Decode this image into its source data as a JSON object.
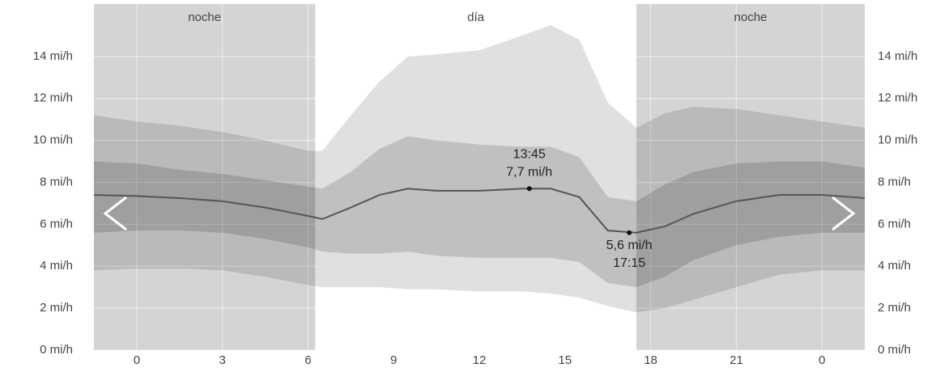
{
  "chart_data": {
    "type": "band-line",
    "periods": [
      {
        "label": "noche",
        "start": -1.5,
        "end": 6.25,
        "night": true
      },
      {
        "label": "día",
        "start": 6.25,
        "end": 17.5,
        "night": false
      },
      {
        "label": "noche",
        "start": 17.5,
        "end": 25.5,
        "night": true
      }
    ],
    "night_color": "rgba(0,0,0,0.17)",
    "x": [
      -1.5,
      0,
      1.5,
      3,
      4.5,
      6,
      6.5,
      7.5,
      8.5,
      9.5,
      10.5,
      12,
      13.5,
      14.5,
      15.5,
      16.5,
      17.5,
      18.5,
      19.5,
      21,
      22.5,
      24,
      25.5
    ],
    "bands": [
      {
        "color": "rgba(0,0,0,0.12)",
        "upper": [
          11.2,
          10.9,
          10.7,
          10.4,
          10.0,
          9.5,
          9.5,
          11.2,
          12.8,
          14.0,
          14.1,
          14.3,
          15.0,
          15.5,
          14.8,
          11.8,
          10.6,
          11.3,
          11.6,
          11.5,
          11.2,
          10.9,
          10.6
        ],
        "lower": [
          3.8,
          3.9,
          3.9,
          3.8,
          3.5,
          3.1,
          3.0,
          3.0,
          3.0,
          2.9,
          2.9,
          2.8,
          2.8,
          2.7,
          2.5,
          2.1,
          1.8,
          2.0,
          2.4,
          3.0,
          3.6,
          3.8,
          3.8
        ]
      },
      {
        "color": "rgba(0,0,0,0.14)",
        "upper": [
          9.0,
          8.9,
          8.6,
          8.4,
          8.1,
          7.8,
          7.7,
          8.5,
          9.6,
          10.2,
          10.0,
          9.8,
          9.7,
          9.7,
          9.2,
          7.3,
          7.1,
          7.9,
          8.5,
          8.9,
          9.0,
          9.0,
          8.7
        ],
        "lower": [
          5.6,
          5.7,
          5.7,
          5.6,
          5.3,
          4.9,
          4.7,
          4.6,
          4.6,
          4.7,
          4.5,
          4.4,
          4.4,
          4.4,
          4.2,
          3.2,
          3.0,
          3.5,
          4.3,
          5.0,
          5.4,
          5.6,
          5.6
        ]
      }
    ],
    "line": {
      "color": "#555555",
      "values": [
        7.4,
        7.35,
        7.25,
        7.1,
        6.8,
        6.4,
        6.25,
        6.8,
        7.4,
        7.7,
        7.6,
        7.6,
        7.7,
        7.7,
        7.3,
        5.7,
        5.6,
        5.9,
        6.5,
        7.1,
        7.4,
        7.4,
        7.25
      ]
    },
    "annotations": [
      {
        "x": 13.75,
        "y": 7.7,
        "time": "13:45",
        "label": "7,7 mi/h",
        "position": "above"
      },
      {
        "x": 17.25,
        "y": 5.6,
        "time": "17:15",
        "label": "5,6 mi/h",
        "position": "below"
      }
    ],
    "xlim": [
      -1.5,
      25.5
    ],
    "ylim": [
      0,
      16.5
    ],
    "xticks": [
      0,
      3,
      6,
      9,
      12,
      15,
      18,
      21,
      {
        "value": 24,
        "label": "0"
      }
    ],
    "yticks": [
      {
        "value": 0,
        "label": "0 mi/h"
      },
      {
        "value": 2,
        "label": "2 mi/h"
      },
      {
        "value": 4,
        "label": "4 mi/h"
      },
      {
        "value": 6,
        "label": "6 mi/h"
      },
      {
        "value": 8,
        "label": "8 mi/h"
      },
      {
        "value": 10,
        "label": "10 mi/h"
      },
      {
        "value": 12,
        "label": "12 mi/h"
      },
      {
        "value": 14,
        "label": "14 mi/h"
      }
    ],
    "grid": true
  }
}
